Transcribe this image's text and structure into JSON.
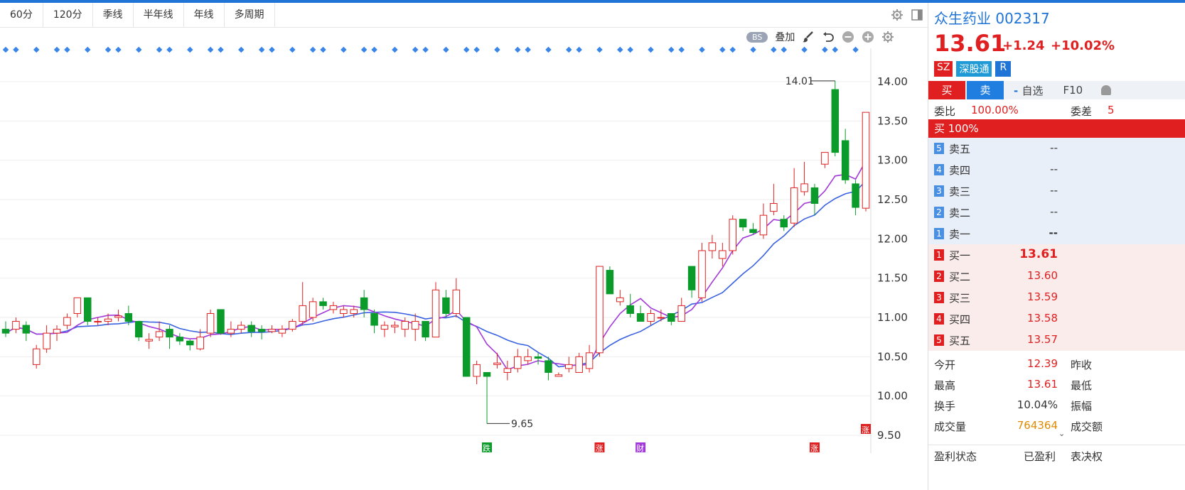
{
  "toolbar": {
    "tabs": [
      "60分",
      "120分",
      "季线",
      "半年线",
      "年线",
      "多周期"
    ]
  },
  "chart_tools": {
    "bs": "BS",
    "overlay": "叠加"
  },
  "stock": {
    "name_code": "众生药业 002317",
    "price": "13.61",
    "change": "+1.24",
    "change_pct": "+10.02%",
    "badges": [
      "SZ",
      "深股通",
      "R"
    ]
  },
  "actions": {
    "buy": "买",
    "sell": "卖",
    "fav": "自选",
    "f10": "F10"
  },
  "weibi": {
    "label": "委比",
    "value": "100.00%",
    "diff_label": "委差",
    "diff_value": "5"
  },
  "buy_ratio": "买 100%",
  "asks": [
    {
      "n": "5",
      "label": "卖五",
      "price": "--"
    },
    {
      "n": "4",
      "label": "卖四",
      "price": "--"
    },
    {
      "n": "3",
      "label": "卖三",
      "price": "--"
    },
    {
      "n": "2",
      "label": "卖二",
      "price": "--"
    },
    {
      "n": "1",
      "label": "卖一",
      "price": "--"
    }
  ],
  "bids": [
    {
      "n": "1",
      "label": "买一",
      "price": "13.61"
    },
    {
      "n": "2",
      "label": "买二",
      "price": "13.60"
    },
    {
      "n": "3",
      "label": "买三",
      "price": "13.59"
    },
    {
      "n": "4",
      "label": "买四",
      "price": "13.58"
    },
    {
      "n": "5",
      "label": "买五",
      "price": "13.57"
    }
  ],
  "stats": [
    {
      "l1": "今开",
      "v1": "12.39",
      "l2": "昨收"
    },
    {
      "l1": "最高",
      "v1": "13.61",
      "l2": "最低"
    },
    {
      "l1": "换手",
      "v1": "10.04%",
      "l2": "振幅"
    },
    {
      "l1": "成交量",
      "v1": "764364",
      "l2": "成交额"
    }
  ],
  "footer": {
    "label": "盈利状态",
    "value": "已盈利",
    "extra": "表决权"
  },
  "colors": {
    "up": "#e02020",
    "down": "#0a9b2a",
    "ma5": "#a23ad9",
    "ma10": "#3a62e0",
    "accent": "#1f74d6"
  },
  "chart_data": {
    "type": "candlestick",
    "y_ticks": [
      "14.00",
      "13.50",
      "13.00",
      "12.50",
      "12.00",
      "11.50",
      "11.00",
      "10.50",
      "10.00",
      "9.50"
    ],
    "ylim": [
      9.5,
      14.0
    ],
    "annotations": {
      "high": "14.01",
      "low": "9.65"
    },
    "event_markers": [
      {
        "label": "跌",
        "color": "#0a9b2a"
      },
      {
        "label": "涨",
        "color": "#e02020"
      },
      {
        "label": "财",
        "color": "#a23ad9"
      },
      {
        "label": "涨",
        "color": "#e02020"
      },
      {
        "label": "涨",
        "color": "#e02020"
      }
    ],
    "candles": [
      [
        10.85,
        10.8,
        10.95,
        10.75
      ],
      [
        10.85,
        10.95,
        11.0,
        10.8
      ],
      [
        10.9,
        10.8,
        10.95,
        10.7
      ],
      [
        10.4,
        10.6,
        10.65,
        10.35
      ],
      [
        10.6,
        10.8,
        10.9,
        10.55
      ],
      [
        10.8,
        10.85,
        10.9,
        10.7
      ],
      [
        10.9,
        11.0,
        11.05,
        10.85
      ],
      [
        11.05,
        11.25,
        11.25,
        11.0
      ],
      [
        11.25,
        10.95,
        11.25,
        10.9
      ],
      [
        10.95,
        10.95,
        11.0,
        10.9
      ],
      [
        10.95,
        10.98,
        11.05,
        10.9
      ],
      [
        11.0,
        11.02,
        11.1,
        10.95
      ],
      [
        11.05,
        10.95,
        11.15,
        10.9
      ],
      [
        10.95,
        10.75,
        10.95,
        10.7
      ],
      [
        10.7,
        10.72,
        10.8,
        10.6
      ],
      [
        10.75,
        10.82,
        10.95,
        10.7
      ],
      [
        10.85,
        10.75,
        10.9,
        10.6
      ],
      [
        10.75,
        10.7,
        10.8,
        10.65
      ],
      [
        10.7,
        10.65,
        10.72,
        10.58
      ],
      [
        10.6,
        10.75,
        10.85,
        10.58
      ],
      [
        10.8,
        11.05,
        11.1,
        10.75
      ],
      [
        11.1,
        10.8,
        11.1,
        10.78
      ],
      [
        10.8,
        10.85,
        10.95,
        10.75
      ],
      [
        10.85,
        10.9,
        10.95,
        10.8
      ],
      [
        10.9,
        10.82,
        10.95,
        10.75
      ],
      [
        10.85,
        10.82,
        10.9,
        10.72
      ],
      [
        10.82,
        10.85,
        10.9,
        10.8
      ],
      [
        10.8,
        10.85,
        10.9,
        10.75
      ],
      [
        10.85,
        10.95,
        10.98,
        10.82
      ],
      [
        10.95,
        11.15,
        11.45,
        10.9
      ],
      [
        11.0,
        11.2,
        11.25,
        10.95
      ],
      [
        11.2,
        11.15,
        11.25,
        11.1
      ],
      [
        11.1,
        11.15,
        11.2,
        11.05
      ],
      [
        11.05,
        11.1,
        11.15,
        11.0
      ],
      [
        11.05,
        11.1,
        11.15,
        11.0
      ],
      [
        11.25,
        11.1,
        11.35,
        11.0
      ],
      [
        11.05,
        10.9,
        11.1,
        10.8
      ],
      [
        10.85,
        10.9,
        10.95,
        10.75
      ],
      [
        10.88,
        10.9,
        10.95,
        10.8
      ],
      [
        10.85,
        10.95,
        11.0,
        10.75
      ],
      [
        10.85,
        10.95,
        11.05,
        10.7
      ],
      [
        10.95,
        10.75,
        10.95,
        10.7
      ],
      [
        10.75,
        11.35,
        11.45,
        10.75
      ],
      [
        11.25,
        11.05,
        11.35,
        11.0
      ],
      [
        11.05,
        11.35,
        11.5,
        11.0
      ],
      [
        11.0,
        10.25,
        11.0,
        10.25
      ],
      [
        10.25,
        10.4,
        10.45,
        10.15
      ],
      [
        10.3,
        10.25,
        10.3,
        9.65
      ],
      [
        10.4,
        10.42,
        10.55,
        10.35
      ],
      [
        10.3,
        10.35,
        10.45,
        10.2
      ],
      [
        10.35,
        10.5,
        10.6,
        10.3
      ],
      [
        10.45,
        10.5,
        10.6,
        10.4
      ],
      [
        10.5,
        10.48,
        10.55,
        10.4
      ],
      [
        10.45,
        10.3,
        10.5,
        10.2
      ],
      [
        10.25,
        10.27,
        10.3,
        10.25
      ],
      [
        10.35,
        10.4,
        10.5,
        10.3
      ],
      [
        10.3,
        10.5,
        10.55,
        10.3
      ],
      [
        10.35,
        10.55,
        10.65,
        10.3
      ],
      [
        10.55,
        11.65,
        11.65,
        10.5
      ],
      [
        11.6,
        11.3,
        11.65,
        11.3
      ],
      [
        11.2,
        11.25,
        11.35,
        11.15
      ],
      [
        11.15,
        11.05,
        11.3,
        11.0
      ],
      [
        11.05,
        10.95,
        11.15,
        10.95
      ],
      [
        10.95,
        11.05,
        11.1,
        10.9
      ],
      [
        11.0,
        11.0,
        11.1,
        10.95
      ],
      [
        11.05,
        10.95,
        11.05,
        10.9
      ],
      [
        10.95,
        11.15,
        11.25,
        10.95
      ],
      [
        11.65,
        11.35,
        11.65,
        11.25
      ],
      [
        11.25,
        11.85,
        11.95,
        11.2
      ],
      [
        11.85,
        11.95,
        12.05,
        11.75
      ],
      [
        11.75,
        11.85,
        11.95,
        11.65
      ],
      [
        11.85,
        12.25,
        12.3,
        11.8
      ],
      [
        12.25,
        12.15,
        12.25,
        12.1
      ],
      [
        12.12,
        12.08,
        12.2,
        12.05
      ],
      [
        12.05,
        12.3,
        12.45,
        12.0
      ],
      [
        12.35,
        12.45,
        12.7,
        12.3
      ],
      [
        12.25,
        12.15,
        12.3,
        12.1
      ],
      [
        12.2,
        12.65,
        12.9,
        12.15
      ],
      [
        12.6,
        12.7,
        12.98,
        12.55
      ],
      [
        12.65,
        12.45,
        12.7,
        12.3
      ],
      [
        12.95,
        13.1,
        13.1,
        12.9
      ],
      [
        13.9,
        13.1,
        14.01,
        13.05
      ],
      [
        13.25,
        12.75,
        13.4,
        12.7
      ],
      [
        12.7,
        12.4,
        12.75,
        12.3
      ],
      [
        12.39,
        13.61,
        13.61,
        12.35
      ]
    ]
  }
}
